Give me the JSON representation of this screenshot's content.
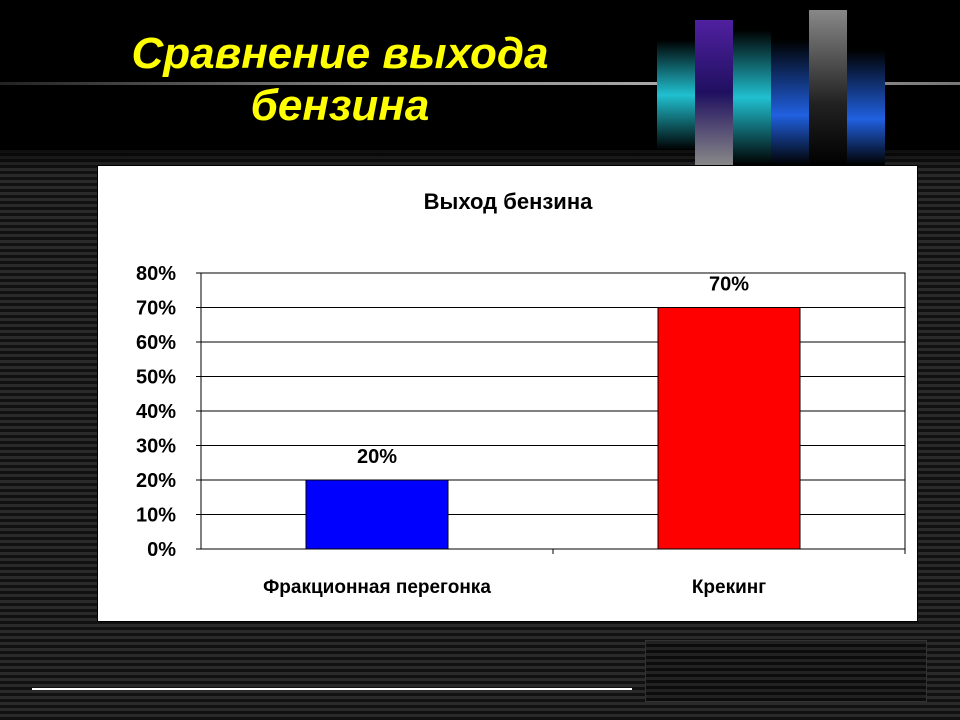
{
  "slide": {
    "title": "Сравнение выхода бензина"
  },
  "chart_data": {
    "type": "bar",
    "title": "Выход бензина",
    "categories": [
      "Фракционная перегонка",
      "Крекинг"
    ],
    "values": [
      20,
      70
    ],
    "data_labels": [
      "20%",
      "70%"
    ],
    "colors": [
      "#0000ff",
      "#ff0000"
    ],
    "ylim": [
      0,
      80
    ],
    "yticks": [
      "0%",
      "10%",
      "20%",
      "30%",
      "40%",
      "50%",
      "60%",
      "70%",
      "80%"
    ],
    "grid": true,
    "legend": "none",
    "xlabel": "",
    "ylabel": ""
  }
}
